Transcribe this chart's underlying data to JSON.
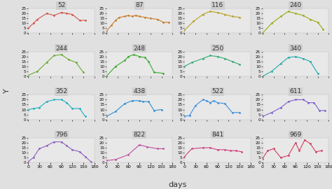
{
  "panels": [
    {
      "id": "52",
      "color": "#d4534a",
      "days": [
        0,
        14,
        25,
        50,
        70,
        90,
        105,
        120,
        140,
        155
      ],
      "y": [
        5,
        10,
        14,
        20,
        18,
        21,
        20,
        19,
        13,
        13
      ]
    },
    {
      "id": "87",
      "color": "#c97c2a",
      "days": [
        0,
        14,
        25,
        35,
        50,
        60,
        70,
        80,
        90,
        105,
        120,
        140,
        155,
        170
      ],
      "y": [
        2,
        8,
        13,
        16,
        17,
        18,
        17,
        18,
        17,
        16,
        15,
        14,
        11,
        11
      ]
    },
    {
      "id": "116",
      "color": "#b8a020",
      "days": [
        0,
        25,
        50,
        70,
        90,
        110,
        130,
        150
      ],
      "y": [
        3,
        12,
        19,
        22,
        21,
        19,
        17,
        16
      ]
    },
    {
      "id": "240",
      "color": "#9aaa10",
      "days": [
        0,
        25,
        50,
        70,
        90,
        110,
        130,
        150,
        165
      ],
      "y": [
        0,
        10,
        17,
        22,
        20,
        18,
        14,
        11,
        4
      ]
    },
    {
      "id": "244",
      "color": "#6aaa30",
      "days": [
        0,
        25,
        50,
        70,
        90,
        110,
        130,
        150
      ],
      "y": [
        1,
        5,
        14,
        21,
        22,
        17,
        14,
        4
      ]
    },
    {
      "id": "248",
      "color": "#3aaa30",
      "days": [
        0,
        25,
        50,
        60,
        75,
        90,
        105,
        115,
        130,
        155
      ],
      "y": [
        0,
        10,
        16,
        20,
        22,
        20,
        19,
        15,
        4,
        3
      ]
    },
    {
      "id": "250",
      "color": "#30aa70",
      "days": [
        0,
        20,
        50,
        70,
        90,
        110,
        130,
        150
      ],
      "y": [
        10,
        14,
        18,
        21,
        20,
        18,
        15,
        12
      ]
    },
    {
      "id": "340",
      "color": "#20aaaa",
      "days": [
        0,
        25,
        50,
        70,
        90,
        110,
        130,
        150
      ],
      "y": [
        0,
        5,
        13,
        19,
        20,
        18,
        15,
        3
      ]
    },
    {
      "id": "352",
      "color": "#20b0c0",
      "days": [
        0,
        14,
        30,
        50,
        70,
        90,
        105,
        120,
        140,
        155
      ],
      "y": [
        10,
        11,
        12,
        18,
        20,
        20,
        17,
        11,
        11,
        3
      ]
    },
    {
      "id": "438",
      "color": "#3090d0",
      "days": [
        0,
        25,
        50,
        70,
        90,
        100,
        115,
        130,
        150
      ],
      "y": [
        3,
        8,
        16,
        19,
        19,
        18,
        18,
        9,
        10
      ]
    },
    {
      "id": "522",
      "color": "#4090e0",
      "days": [
        0,
        14,
        30,
        50,
        60,
        70,
        80,
        90,
        110,
        130,
        150
      ],
      "y": [
        3,
        4,
        14,
        20,
        19,
        17,
        19,
        17,
        16,
        7,
        7
      ]
    },
    {
      "id": "611",
      "color": "#8060d0",
      "days": [
        0,
        25,
        50,
        70,
        90,
        110,
        125,
        140,
        155,
        170
      ],
      "y": [
        3,
        7,
        12,
        18,
        20,
        20,
        17,
        17,
        9,
        9
      ]
    },
    {
      "id": "796",
      "color": "#9060c0",
      "days": [
        0,
        14,
        30,
        50,
        70,
        90,
        105,
        120,
        140,
        155,
        170
      ],
      "y": [
        1,
        5,
        14,
        17,
        21,
        21,
        17,
        13,
        11,
        6,
        1
      ]
    },
    {
      "id": "822",
      "color": "#c050a0",
      "days": [
        0,
        25,
        60,
        90,
        110,
        140,
        155
      ],
      "y": [
        2,
        3,
        8,
        18,
        16,
        14,
        14
      ]
    },
    {
      "id": "841",
      "color": "#d04080",
      "days": [
        0,
        20,
        50,
        70,
        90,
        110,
        125,
        140,
        155
      ],
      "y": [
        6,
        14,
        15,
        15,
        13,
        13,
        12,
        12,
        11
      ]
    },
    {
      "id": "969",
      "color": "#d04060",
      "days": [
        0,
        14,
        30,
        50,
        70,
        90,
        100,
        115,
        130,
        145,
        160
      ],
      "y": [
        4,
        12,
        14,
        5,
        7,
        20,
        12,
        23,
        19,
        11,
        12
      ]
    }
  ],
  "nrows": 4,
  "ncols": 4,
  "xlim": [
    0,
    180
  ],
  "ylim": [
    0,
    25
  ],
  "xticks": [
    0,
    30,
    60,
    90,
    120,
    150,
    180
  ],
  "yticks": [
    0,
    5,
    10,
    15,
    20,
    25
  ],
  "xlabel": "days",
  "ylabel": "Y",
  "bg_panel": "#e8e8e8",
  "bg_strip": "#cecece",
  "bg_fig": "#e0e0e0",
  "marker": "o",
  "markersize": 2.0,
  "linewidth": 0.8
}
